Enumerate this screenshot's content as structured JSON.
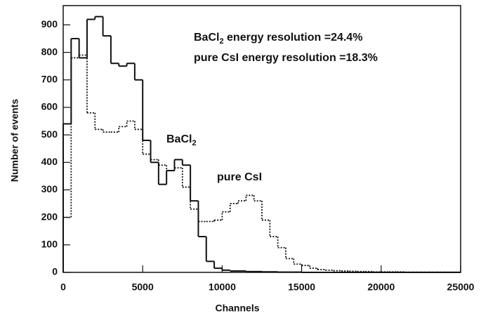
{
  "chart_data": {
    "type": "histogram",
    "xlabel": "Channels",
    "ylabel": "Number of events",
    "annotations": [
      {
        "text": "BaCl",
        "sub": "2",
        "after": " energy resolution =24.4%"
      },
      {
        "text": "pure CsI energy resolution =18.3%"
      }
    ],
    "bins": [
      0,
      500,
      1000,
      1500,
      2000,
      2500,
      3000,
      3500,
      4000,
      4500,
      5000,
      5500,
      6000,
      6500,
      7000,
      7500,
      8000,
      8500,
      9000,
      9500,
      10000,
      10500,
      11000,
      11500,
      12000,
      12500,
      13000,
      13500,
      14000,
      14500,
      15000,
      15500,
      16000,
      16500,
      17000,
      17500,
      18000,
      18500,
      19000,
      19500,
      20000,
      20500,
      21000,
      21500,
      22000,
      22500,
      23000,
      23500,
      24000,
      24500,
      25000
    ],
    "series": [
      {
        "name": "BaCl",
        "name_sub": "2",
        "color": "#111111",
        "style": "solid",
        "values": [
          540,
          850,
          780,
          920,
          930,
          860,
          760,
          750,
          760,
          700,
          480,
          400,
          320,
          370,
          410,
          390,
          260,
          130,
          40,
          15,
          8,
          5,
          5,
          3,
          3,
          2,
          2,
          1,
          1,
          1,
          0,
          0,
          0,
          0,
          0,
          0,
          0,
          0,
          0,
          0,
          0,
          0,
          0,
          0,
          0,
          0,
          0,
          0,
          0,
          0
        ]
      },
      {
        "name": "pure CsI",
        "color": "#111111",
        "style": "dotted",
        "values": [
          200,
          780,
          790,
          580,
          520,
          510,
          510,
          530,
          550,
          520,
          430,
          410,
          390,
          370,
          380,
          310,
          230,
          185,
          185,
          190,
          220,
          250,
          260,
          280,
          260,
          190,
          130,
          90,
          50,
          30,
          25,
          15,
          10,
          8,
          6,
          5,
          4,
          3,
          3,
          2,
          2,
          2,
          2,
          1,
          1,
          1,
          1,
          1,
          1,
          1
        ]
      }
    ],
    "xlim": [
      0,
      25000
    ],
    "ylim": [
      0,
      970
    ],
    "xticks": [
      0,
      5000,
      10000,
      15000,
      20000,
      25000
    ],
    "yticks": [
      0,
      100,
      200,
      300,
      400,
      500,
      600,
      700,
      800,
      900
    ]
  }
}
